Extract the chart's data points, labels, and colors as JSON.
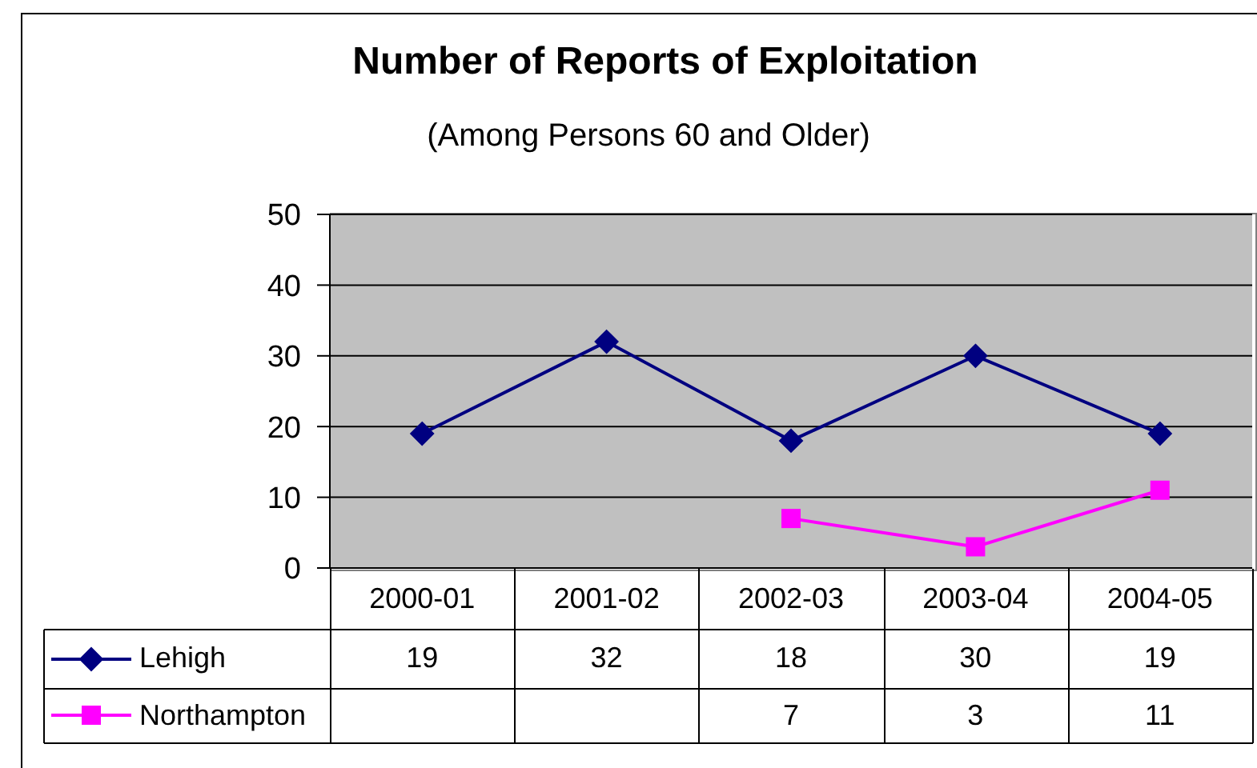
{
  "chart_data": {
    "type": "line",
    "title": "Number of Reports of Exploitation",
    "subtitle": "(Among Persons 60 and Older)",
    "categories": [
      "2000-01",
      "2001-02",
      "2002-03",
      "2003-04",
      "2004-05"
    ],
    "series": [
      {
        "name": "Lehigh",
        "color": "#000080",
        "values": [
          19,
          32,
          18,
          30,
          19
        ],
        "marker": "diamond"
      },
      {
        "name": "Northampton",
        "color": "#ff00ff",
        "values": [
          null,
          null,
          7,
          3,
          11
        ],
        "marker": "square"
      }
    ],
    "ylim": [
      0,
      50
    ],
    "yticks": [
      0,
      10,
      20,
      30,
      40,
      50
    ],
    "grid": "y",
    "legend": "bottom left",
    "data_labels": true,
    "line_style": "solid"
  }
}
